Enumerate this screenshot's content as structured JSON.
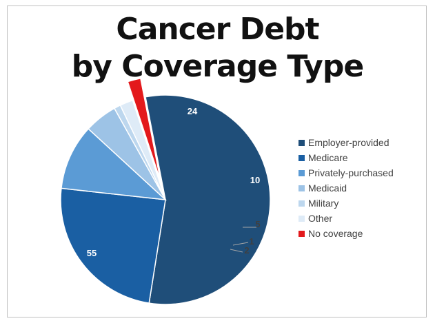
{
  "chart_data": {
    "type": "pie",
    "title_line1": "Cancer Debt",
    "title_line2": "by Coverage Type",
    "slices": [
      {
        "label": "Employer-provided",
        "value": 55,
        "color": "#1f4e79"
      },
      {
        "label": "Medicare",
        "value": 24,
        "color": "#1a5fa3"
      },
      {
        "label": "Privately-purchased",
        "value": 10,
        "color": "#5b9bd5"
      },
      {
        "label": "Medicaid",
        "value": 5,
        "color": "#9dc3e6"
      },
      {
        "label": "Military",
        "value": 1,
        "color": "#bdd7ee"
      },
      {
        "label": "Other",
        "value": 2,
        "color": "#deebf7"
      },
      {
        "label": "No coverage",
        "value": 2,
        "color": "#e3191c",
        "exploded": true
      }
    ],
    "legend_position": "right"
  }
}
